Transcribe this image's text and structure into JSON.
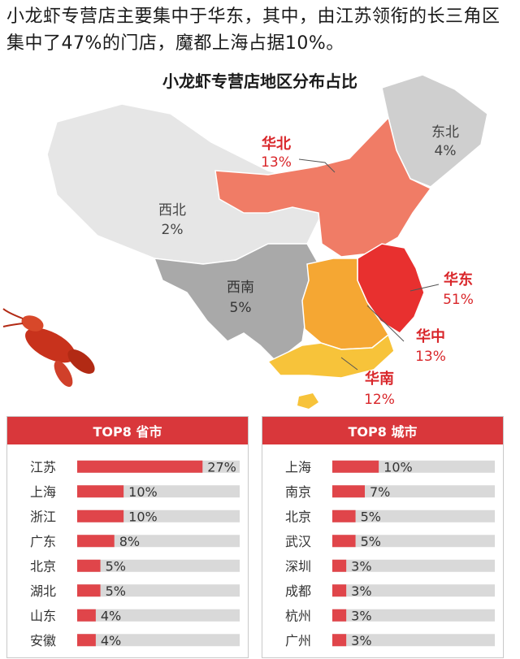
{
  "headline": "小龙虾专营店主要集中于华东，其中，由江苏领衔的长三角区集中了47%的门店，魔都上海占据10%。",
  "chart_data": [
    {
      "type": "map",
      "title": "小龙虾专营店地区分布占比",
      "regions": [
        {
          "name": "华东",
          "value": 51,
          "label": "51%",
          "color": "#e8302f"
        },
        {
          "name": "华北",
          "value": 13,
          "label": "13%",
          "color": "#f07c66"
        },
        {
          "name": "华中",
          "value": 13,
          "label": "13%",
          "color": "#f5a733"
        },
        {
          "name": "华南",
          "value": 12,
          "label": "12%",
          "color": "#f7c33a"
        },
        {
          "name": "西南",
          "value": 5,
          "label": "5%",
          "color": "#a9a9a9"
        },
        {
          "name": "东北",
          "value": 4,
          "label": "4%",
          "color": "#cfcfcf"
        },
        {
          "name": "西北",
          "value": 2,
          "label": "2%",
          "color": "#e6e6e6"
        }
      ]
    },
    {
      "type": "bar",
      "title": "TOP8 省市",
      "categories": [
        "江苏",
        "上海",
        "浙江",
        "广东",
        "北京",
        "湖北",
        "山东",
        "安徽"
      ],
      "values": [
        27,
        10,
        10,
        8,
        5,
        5,
        4,
        4
      ],
      "labels": [
        "27%",
        "10%",
        "10%",
        "8%",
        "5%",
        "5%",
        "4%",
        "4%"
      ],
      "xlim": [
        0,
        35
      ]
    },
    {
      "type": "bar",
      "title": "TOP8 城市",
      "categories": [
        "上海",
        "南京",
        "北京",
        "武汉",
        "深圳",
        "成都",
        "杭州",
        "广州"
      ],
      "values": [
        10,
        7,
        5,
        5,
        3,
        3,
        3,
        3
      ],
      "labels": [
        "10%",
        "7%",
        "5%",
        "5%",
        "3%",
        "3%",
        "3%",
        "3%"
      ],
      "xlim": [
        0,
        35
      ]
    }
  ],
  "colors": {
    "accent": "#d9373b",
    "bar": "#e0454a",
    "track": "#d9d9d9",
    "region_text_red": "#d9262a",
    "region_text_gray": "#444444"
  },
  "icons": {
    "decoration": "crayfish-icon"
  }
}
